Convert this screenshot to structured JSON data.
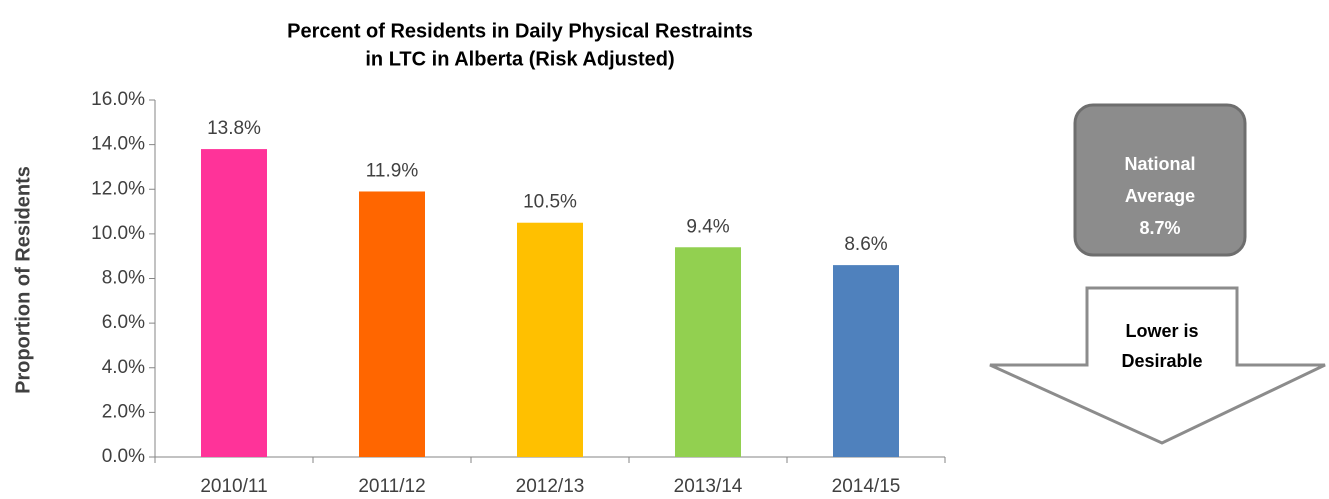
{
  "chart_data": {
    "type": "bar",
    "title": [
      "Percent of Residents in Daily Physical Restraints",
      "in LTC in Alberta (Risk Adjusted)"
    ],
    "y_label": "Proportion of Residents",
    "categories": [
      "2010/11",
      "2011/12",
      "2012/13",
      "2013/14",
      "2014/15"
    ],
    "values": [
      13.8,
      11.9,
      10.5,
      9.4,
      8.6
    ],
    "value_labels": [
      "13.8%",
      "11.9%",
      "10.5%",
      "9.4%",
      "8.6%"
    ],
    "colors": [
      "#ff3399",
      "#ff6600",
      "#ffc000",
      "#92d050",
      "#4f81bd"
    ],
    "ylim": [
      0,
      16
    ],
    "yticks": [
      {
        "value": 0,
        "label": "0.0%"
      },
      {
        "value": 2,
        "label": "2.0%"
      },
      {
        "value": 4,
        "label": "4.0%"
      },
      {
        "value": 6,
        "label": "6.0%"
      },
      {
        "value": 8,
        "label": "8.0%"
      },
      {
        "value": 10,
        "label": "10.0%"
      },
      {
        "value": 12,
        "label": "12.0%"
      },
      {
        "value": 14,
        "label": "14.0%"
      },
      {
        "value": 16,
        "label": "16.0%"
      }
    ],
    "annotations": [
      {
        "lines": [
          "National",
          "Average",
          "8.7%"
        ]
      },
      {
        "lines": [
          "Lower is",
          "Desirable"
        ]
      }
    ]
  }
}
